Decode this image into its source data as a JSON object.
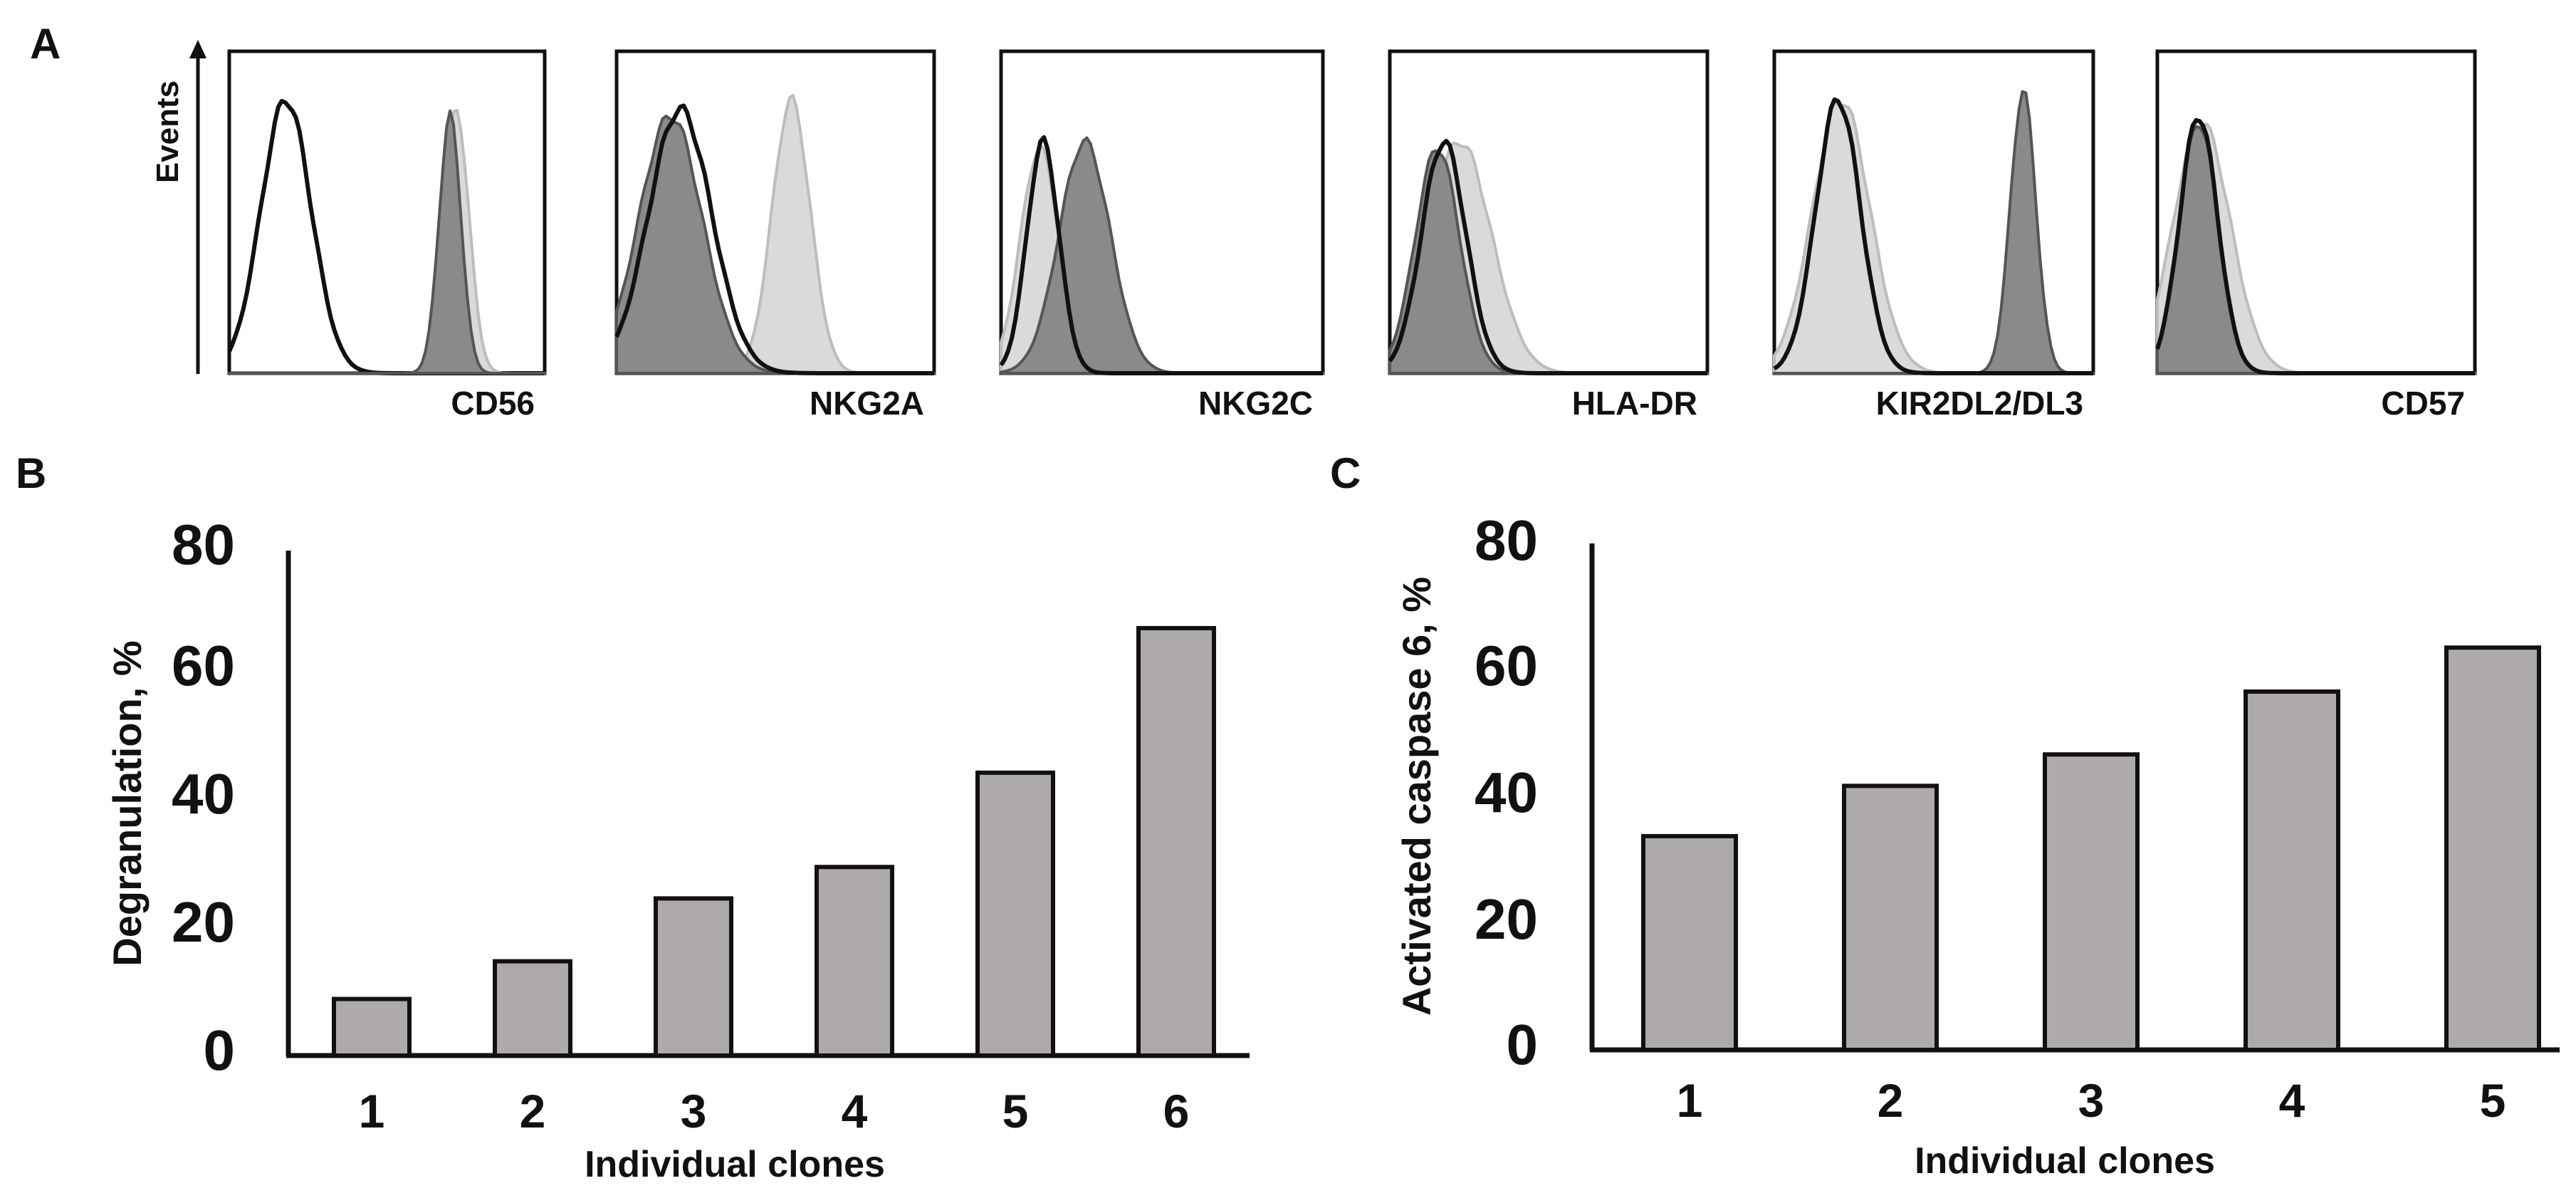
{
  "panel_labels": {
    "a": "A",
    "b": "B",
    "c": "C"
  },
  "panel_a": {
    "y_axis_label": "Events",
    "histograms": [
      {
        "marker": "CD56",
        "curves": [
          {
            "tone": "black-outline",
            "peak": 0.18,
            "width": 0.08,
            "height": 0.85
          },
          {
            "tone": "light-gray",
            "peak": 0.72,
            "width": 0.04,
            "height": 0.82
          },
          {
            "tone": "dark-gray",
            "peak": 0.7,
            "width": 0.035,
            "height": 0.8
          }
        ]
      },
      {
        "marker": "NKG2A",
        "curves": [
          {
            "tone": "light-gray",
            "peak": 0.55,
            "width": 0.06,
            "height": 0.85
          },
          {
            "tone": "dark-gray",
            "peak": 0.17,
            "width": 0.1,
            "height": 0.8
          },
          {
            "tone": "black-outline",
            "peak": 0.2,
            "width": 0.1,
            "height": 0.82
          }
        ]
      },
      {
        "marker": "NKG2C",
        "curves": [
          {
            "tone": "light-gray",
            "peak": 0.12,
            "width": 0.06,
            "height": 0.7
          },
          {
            "tone": "dark-gray",
            "peak": 0.26,
            "width": 0.08,
            "height": 0.72
          },
          {
            "tone": "black-outline",
            "peak": 0.13,
            "width": 0.05,
            "height": 0.72
          }
        ]
      },
      {
        "marker": "HLA-DR",
        "curves": [
          {
            "tone": "light-gray",
            "peak": 0.22,
            "width": 0.1,
            "height": 0.72
          },
          {
            "tone": "dark-gray",
            "peak": 0.15,
            "width": 0.07,
            "height": 0.7
          },
          {
            "tone": "black-outline",
            "peak": 0.17,
            "width": 0.07,
            "height": 0.72
          }
        ]
      },
      {
        "marker": "KIR2DL2/DL3",
        "curves": [
          {
            "tone": "light-gray",
            "peak": 0.21,
            "width": 0.09,
            "height": 0.85
          },
          {
            "tone": "dark-gray",
            "peak": 0.78,
            "width": 0.04,
            "height": 0.88
          },
          {
            "tone": "black-outline",
            "peak": 0.2,
            "width": 0.07,
            "height": 0.85
          }
        ]
      },
      {
        "marker": "CD57",
        "curves": [
          {
            "tone": "light-gray",
            "peak": 0.14,
            "width": 0.09,
            "height": 0.78
          },
          {
            "tone": "dark-gray",
            "peak": 0.13,
            "width": 0.06,
            "height": 0.78
          },
          {
            "tone": "black-outline",
            "peak": 0.13,
            "width": 0.06,
            "height": 0.8
          }
        ]
      }
    ]
  },
  "chart_data": [
    {
      "panel": "B",
      "type": "bar",
      "categories": [
        "1",
        "2",
        "3",
        "4",
        "5",
        "6"
      ],
      "values": [
        9,
        15,
        25,
        30,
        45,
        68
      ],
      "title": "",
      "xlabel": "Individual clones",
      "ylabel": "Degranulation, %",
      "ylim": [
        0,
        80
      ],
      "yticks": [
        "0",
        "20",
        "40",
        "60",
        "80"
      ],
      "bar_color": "#aeaaaa"
    },
    {
      "panel": "C",
      "type": "bar",
      "categories": [
        "1",
        "2",
        "3",
        "4",
        "5"
      ],
      "values": [
        34,
        42,
        47,
        57,
        64
      ],
      "title": "",
      "xlabel": "Individual clones",
      "ylabel": "Activated caspase 6, %",
      "ylim": [
        0,
        80
      ],
      "yticks": [
        "0",
        "20",
        "40",
        "60",
        "80"
      ],
      "bar_color": "#aeaaaa"
    }
  ],
  "colors": {
    "light_gray": "#dadada",
    "dark_gray": "#8a8a8a",
    "outline": "#111111",
    "bar": "#aeaaaa"
  }
}
